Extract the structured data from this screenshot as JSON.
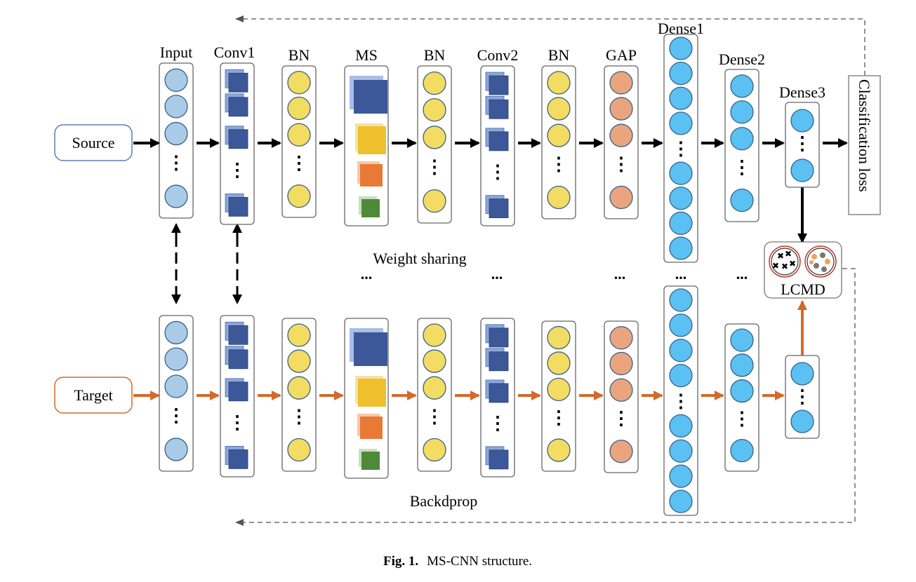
{
  "diagram": {
    "layer_labels": [
      "Input",
      "Conv1",
      "BN",
      "MS",
      "BN",
      "Conv2",
      "BN",
      "GAP",
      "Dense1",
      "Dense2",
      "Dense3"
    ],
    "source_label": "Source",
    "target_label": "Target",
    "loss_label": "Classification loss",
    "weight_sharing_label": "Weight sharing",
    "lcmd_label": "LCMD",
    "backprop_label": "Backdprop",
    "ellipsis": "...",
    "vdots": "⋮",
    "colors": {
      "input_node": "#a9cbe7",
      "bn_node": "#f2dc62",
      "gap_node": "#eaa57e",
      "dense_node": "#5bc0f2",
      "conv_square": "#3c5898",
      "conv_square_back": "#8ca8d8",
      "ms_blue": "#3c5898",
      "ms_yellow": "#eec02e",
      "ms_orange": "#e87a36",
      "ms_green": "#4f8a38",
      "source_arrow": "#000000",
      "target_arrow": "#d4692a",
      "source_box_border": "#5a7fb5",
      "target_box_border": "#d4692a"
    }
  },
  "caption": {
    "label": "Fig. 1.",
    "text": "MS-CNN structure."
  }
}
